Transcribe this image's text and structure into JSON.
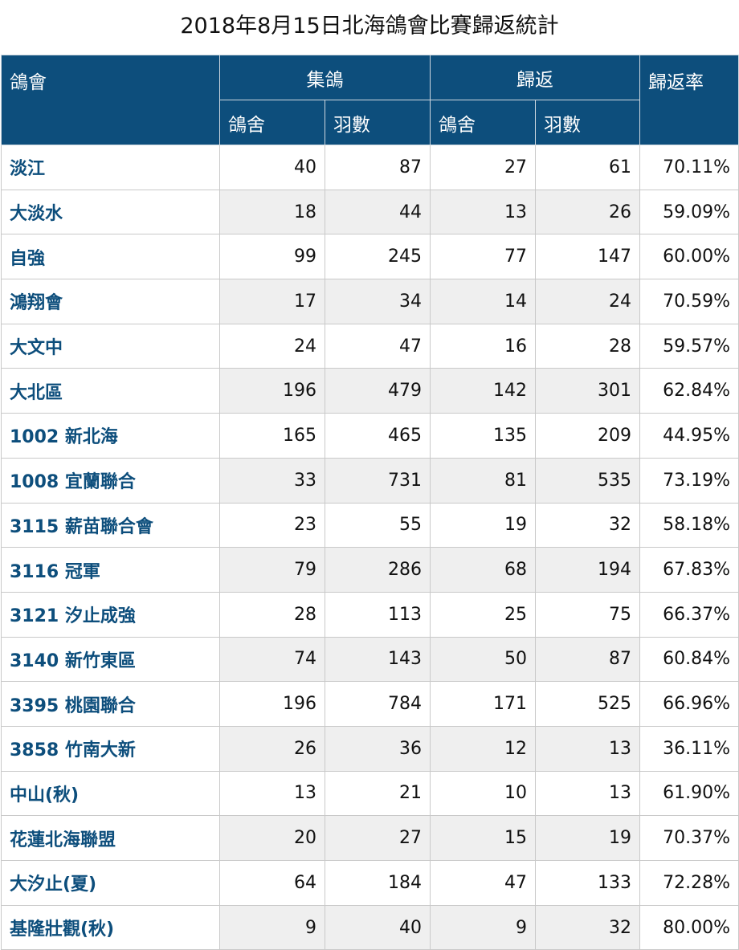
{
  "title": "2018年8月15日北海鴿會比賽歸返統計",
  "header": {
    "club": "鴿會",
    "collected": "集鴿",
    "returned": "歸返",
    "rate": "歸返率",
    "lofts": "鴿舍",
    "birds": "羽數",
    "lofts2": "鴿舍",
    "birds2": "羽數"
  },
  "rows": [
    {
      "club": "淡江",
      "c_lofts": "40",
      "c_birds": "87",
      "r_lofts": "27",
      "r_birds": "61",
      "rate": "70.11%"
    },
    {
      "club": "大淡水",
      "c_lofts": "18",
      "c_birds": "44",
      "r_lofts": "13",
      "r_birds": "26",
      "rate": "59.09%"
    },
    {
      "club": "自強",
      "c_lofts": "99",
      "c_birds": "245",
      "r_lofts": "77",
      "r_birds": "147",
      "rate": "60.00%"
    },
    {
      "club": "鴻翔會",
      "c_lofts": "17",
      "c_birds": "34",
      "r_lofts": "14",
      "r_birds": "24",
      "rate": "70.59%"
    },
    {
      "club": "大文中",
      "c_lofts": "24",
      "c_birds": "47",
      "r_lofts": "16",
      "r_birds": "28",
      "rate": "59.57%"
    },
    {
      "club": "大北區",
      "c_lofts": "196",
      "c_birds": "479",
      "r_lofts": "142",
      "r_birds": "301",
      "rate": "62.84%"
    },
    {
      "club": "1002 新北海",
      "c_lofts": "165",
      "c_birds": "465",
      "r_lofts": "135",
      "r_birds": "209",
      "rate": "44.95%"
    },
    {
      "club": "1008 宜蘭聯合",
      "c_lofts": "33",
      "c_birds": "731",
      "r_lofts": "81",
      "r_birds": "535",
      "rate": "73.19%"
    },
    {
      "club": "3115 薪苗聯合會",
      "c_lofts": "23",
      "c_birds": "55",
      "r_lofts": "19",
      "r_birds": "32",
      "rate": "58.18%"
    },
    {
      "club": "3116 冠軍",
      "c_lofts": "79",
      "c_birds": "286",
      "r_lofts": "68",
      "r_birds": "194",
      "rate": "67.83%"
    },
    {
      "club": "3121 汐止成強",
      "c_lofts": "28",
      "c_birds": "113",
      "r_lofts": "25",
      "r_birds": "75",
      "rate": "66.37%"
    },
    {
      "club": "3140 新竹東區",
      "c_lofts": "74",
      "c_birds": "143",
      "r_lofts": "50",
      "r_birds": "87",
      "rate": "60.84%"
    },
    {
      "club": "3395 桃園聯合",
      "c_lofts": "196",
      "c_birds": "784",
      "r_lofts": "171",
      "r_birds": "525",
      "rate": "66.96%"
    },
    {
      "club": "3858 竹南大新",
      "c_lofts": "26",
      "c_birds": "36",
      "r_lofts": "12",
      "r_birds": "13",
      "rate": "36.11%"
    },
    {
      "club": "中山(秋)",
      "c_lofts": "13",
      "c_birds": "21",
      "r_lofts": "10",
      "r_birds": "13",
      "rate": "61.90%"
    },
    {
      "club": "花蓮北海聯盟",
      "c_lofts": "20",
      "c_birds": "27",
      "r_lofts": "15",
      "r_birds": "19",
      "rate": "70.37%"
    },
    {
      "club": "大汐止(夏)",
      "c_lofts": "64",
      "c_birds": "184",
      "r_lofts": "47",
      "r_birds": "133",
      "rate": "72.28%"
    },
    {
      "club": "基隆壯觀(秋)",
      "c_lofts": "9",
      "c_birds": "40",
      "r_lofts": "9",
      "r_birds": "32",
      "rate": "80.00%"
    }
  ],
  "colors": {
    "header_bg": "#0d4e7c",
    "club_text": "#0d4e7c",
    "stripe": "#efefef"
  }
}
